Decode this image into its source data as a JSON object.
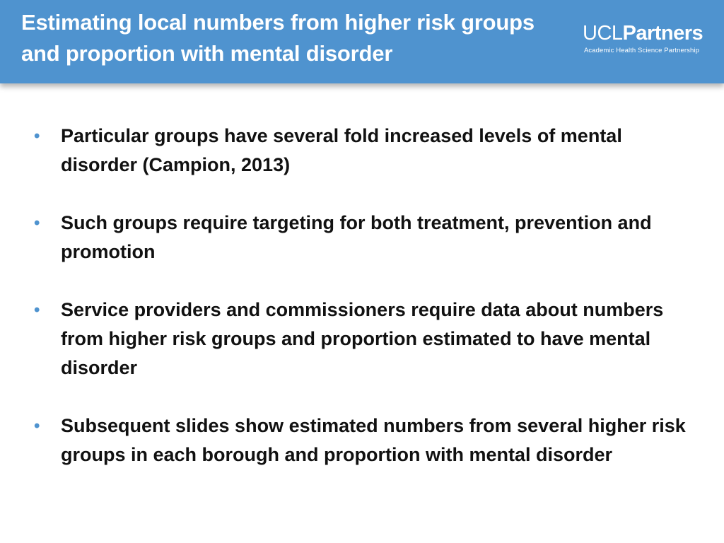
{
  "header": {
    "title": "Estimating local numbers from higher risk groups and proportion with mental disorder",
    "background_color": "#4f93cf"
  },
  "logo": {
    "ucl": "UCL",
    "partners": "Partners",
    "subtitle": "Academic Health Science Partnership"
  },
  "bullet_color": "#4f93cf",
  "bullets": [
    {
      "glyph": "•",
      "text": "Particular groups have several fold increased levels of mental disorder (Campion, 2013)"
    },
    {
      "glyph": "•",
      "text": "Such groups require targeting for both treatment, prevention and promotion"
    },
    {
      "glyph": "•",
      "text": "Service providers and commissioners require data about numbers from higher risk groups and proportion estimated to have mental disorder"
    },
    {
      "glyph": "•",
      "text": "Subsequent slides show estimated numbers from several higher risk groups in each borough and proportion with mental disorder"
    }
  ]
}
